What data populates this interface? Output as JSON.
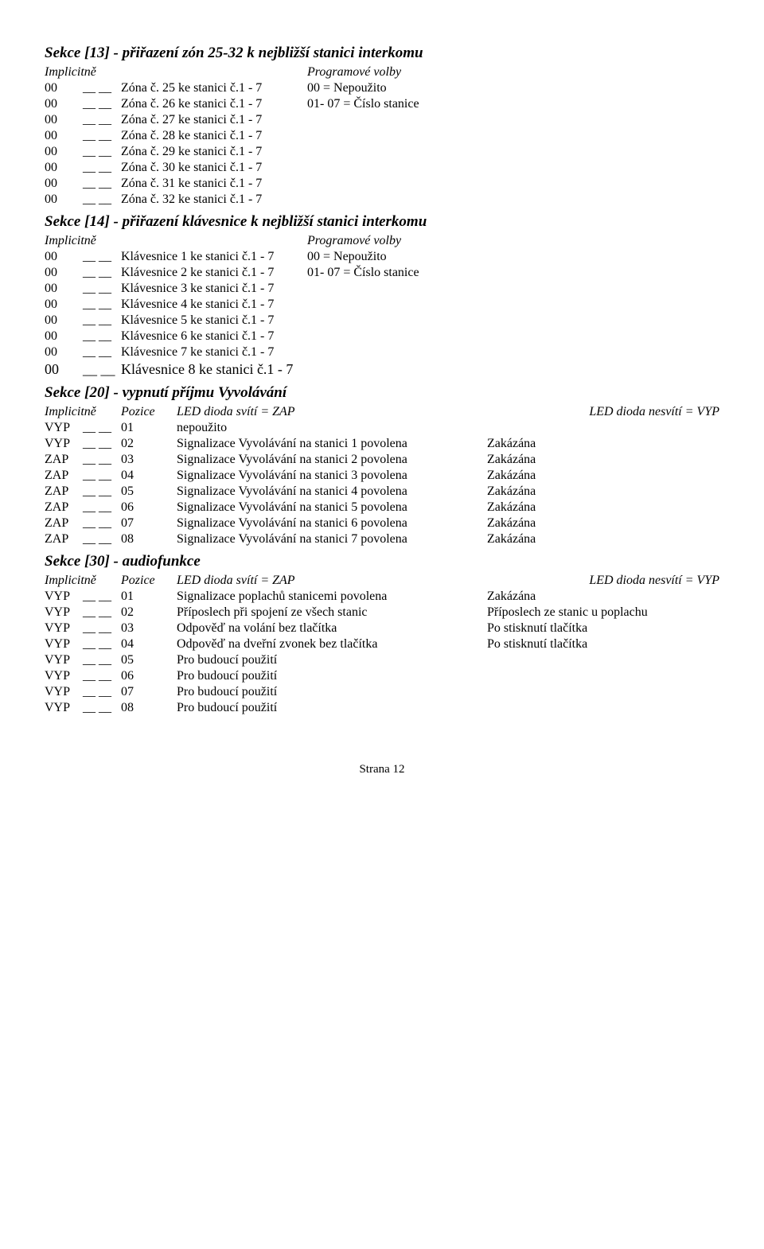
{
  "section13": {
    "title": "Sekce [13] - přiřazení zón 25-32 k nejbližší stanici interkomu",
    "hdr_left": "Implicitně",
    "hdr_right": "Programové volby",
    "rows": [
      {
        "implic": "00",
        "blank": "__ __",
        "desc": "Zóna č. 25 ke stanici č.1 - 7",
        "opt": "00 = Nepoužito"
      },
      {
        "implic": "00",
        "blank": "__ __",
        "desc": "Zóna č. 26 ke stanici č.1 - 7",
        "opt": "01- 07 = Číslo stanice"
      },
      {
        "implic": "00",
        "blank": "__ __",
        "desc": "Zóna č. 27 ke stanici č.1 - 7",
        "opt": ""
      },
      {
        "implic": "00",
        "blank": "__ __",
        "desc": "Zóna č. 28 ke stanici č.1 - 7",
        "opt": ""
      },
      {
        "implic": "00",
        "blank": "__ __",
        "desc": "Zóna č. 29 ke stanici č.1 - 7",
        "opt": ""
      },
      {
        "implic": "00",
        "blank": "__ __",
        "desc": "Zóna č. 30 ke stanici č.1 - 7",
        "opt": ""
      },
      {
        "implic": "00",
        "blank": "__ __",
        "desc": "Zóna č. 31 ke stanici č.1 - 7",
        "opt": ""
      },
      {
        "implic": "00",
        "blank": "__ __",
        "desc": "Zóna č. 32 ke stanici č.1 - 7",
        "opt": ""
      }
    ]
  },
  "section14": {
    "title": "Sekce [14] - přiřazení klávesnice k nejbližší stanici interkomu",
    "hdr_left": "Implicitně",
    "hdr_right": "Programové volby",
    "rows": [
      {
        "implic": "00",
        "blank": "__ __",
        "desc": "Klávesnice 1 ke stanici č.1 - 7",
        "opt": "00 = Nepoužito"
      },
      {
        "implic": "00",
        "blank": "__ __",
        "desc": "Klávesnice 2 ke stanici č.1 - 7",
        "opt": "01- 07 = Číslo stanice"
      },
      {
        "implic": "00",
        "blank": "__ __",
        "desc": "Klávesnice 3 ke stanici č.1 - 7",
        "opt": ""
      },
      {
        "implic": "00",
        "blank": "__ __",
        "desc": "Klávesnice 4 ke stanici č.1 - 7",
        "opt": ""
      },
      {
        "implic": "00",
        "blank": "__ __",
        "desc": "Klávesnice 5 ke stanici č.1 - 7",
        "opt": ""
      },
      {
        "implic": "00",
        "blank": "__ __",
        "desc": "Klávesnice 6 ke stanici č.1 - 7",
        "opt": ""
      },
      {
        "implic": "00",
        "blank": "__ __",
        "desc": "Klávesnice 7 ke stanici č.1 - 7",
        "opt": ""
      },
      {
        "implic": "00",
        "blank": "__ __",
        "desc": "Klávesnice 8 ke stanici č.1 - 7",
        "opt": "",
        "larger": true
      }
    ]
  },
  "section20": {
    "title": "Sekce [20] - vypnutí příjmu Vyvolávání",
    "hdr_implic": "Implicitně",
    "hdr_pozice": "Pozice",
    "hdr_on": "LED dioda svítí = ZAP",
    "hdr_off": "LED dioda nesvítí = VYP",
    "rows": [
      {
        "implic": "VYP",
        "blank": "__ __",
        "poz": "01",
        "on": "nepoužito",
        "off": ""
      },
      {
        "implic": "VYP",
        "blank": "__ __",
        "poz": "02",
        "on": "Signalizace Vyvolávání na stanici 1 povolena",
        "off": "Zakázána"
      },
      {
        "implic": "ZAP",
        "blank": "__ __",
        "poz": "03",
        "on": "Signalizace Vyvolávání na stanici 2 povolena",
        "off": "Zakázána"
      },
      {
        "implic": "ZAP",
        "blank": "__ __",
        "poz": "04",
        "on": "Signalizace Vyvolávání na stanici 3 povolena",
        "off": "Zakázána"
      },
      {
        "implic": "ZAP",
        "blank": "__ __",
        "poz": "05",
        "on": "Signalizace Vyvolávání na stanici 4 povolena",
        "off": "Zakázána"
      },
      {
        "implic": "ZAP",
        "blank": "__ __",
        "poz": "06",
        "on": "Signalizace Vyvolávání na stanici 5 povolena",
        "off": "Zakázána"
      },
      {
        "implic": "ZAP",
        "blank": "__ __",
        "poz": "07",
        "on": "Signalizace Vyvolávání na stanici 6 povolena",
        "off": "Zakázána"
      },
      {
        "implic": "ZAP",
        "blank": "__ __",
        "poz": "08",
        "on": "Signalizace Vyvolávání na stanici 7 povolena",
        "off": "Zakázána"
      }
    ]
  },
  "section30": {
    "title": "Sekce [30] -  audiofunkce",
    "hdr_implic": "Implicitně",
    "hdr_pozice": "Pozice",
    "hdr_on": "LED dioda svítí = ZAP",
    "hdr_off": "LED dioda nesvítí = VYP",
    "rows": [
      {
        "implic": "VYP",
        "blank": "__ __",
        "poz": "01",
        "on": "Signalizace poplachů stanicemi povolena",
        "off": "Zakázána"
      },
      {
        "implic": "VYP",
        "blank": "__ __",
        "poz": "02",
        "on": "Příposlech při spojení ze všech stanic",
        "off": "Příposlech ze stanic u poplachu"
      },
      {
        "implic": "VYP",
        "blank": "__ __",
        "poz": "03",
        "on": "Odpověď na volání bez tlačítka",
        "off": "Po stisknutí tlačítka"
      },
      {
        "implic": "VYP",
        "blank": "__ __",
        "poz": "04",
        "on": "Odpověď na dveřní zvonek bez tlačítka",
        "off": "Po stisknutí tlačítka"
      },
      {
        "implic": "VYP",
        "blank": "__ __",
        "poz": "05",
        "on": "Pro budoucí použití",
        "off": ""
      },
      {
        "implic": "VYP",
        "blank": "__ __",
        "poz": "06",
        "on": "Pro budoucí použití",
        "off": ""
      },
      {
        "implic": "VYP",
        "blank": "__ __",
        "poz": "07",
        "on": "Pro budoucí použití",
        "off": ""
      },
      {
        "implic": "VYP",
        "blank": "__ __",
        "poz": "08",
        "on": "Pro budoucí použití",
        "off": ""
      }
    ]
  },
  "footer": "Strana 12"
}
